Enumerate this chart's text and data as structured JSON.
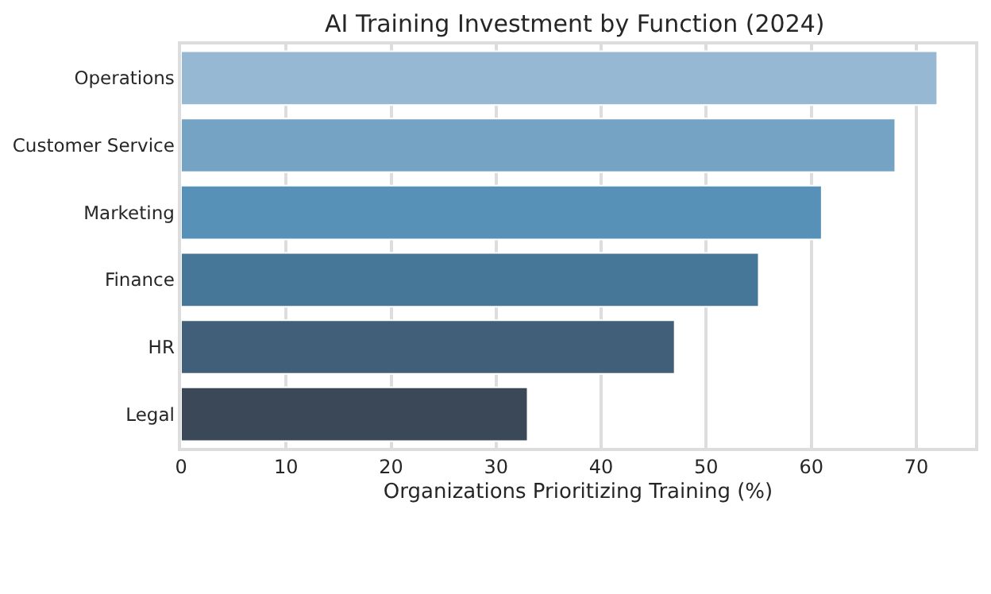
{
  "chart_data": {
    "type": "bar",
    "orientation": "horizontal",
    "title": "AI Training Investment by Function (2024)",
    "xlabel": "Organizations Prioritizing Training (%)",
    "categories": [
      "Operations",
      "Customer Service",
      "Marketing",
      "Finance",
      "HR",
      "Legal"
    ],
    "values": [
      72,
      68,
      61,
      55,
      47,
      33
    ],
    "colors": [
      "#97b8d2",
      "#74a3c4",
      "#5891b7",
      "#467799",
      "#415f79",
      "#3a4858"
    ],
    "xlim": [
      0,
      75.6
    ],
    "xticks": [
      0,
      10,
      20,
      30,
      40,
      50,
      60,
      70
    ],
    "grid": "x"
  }
}
